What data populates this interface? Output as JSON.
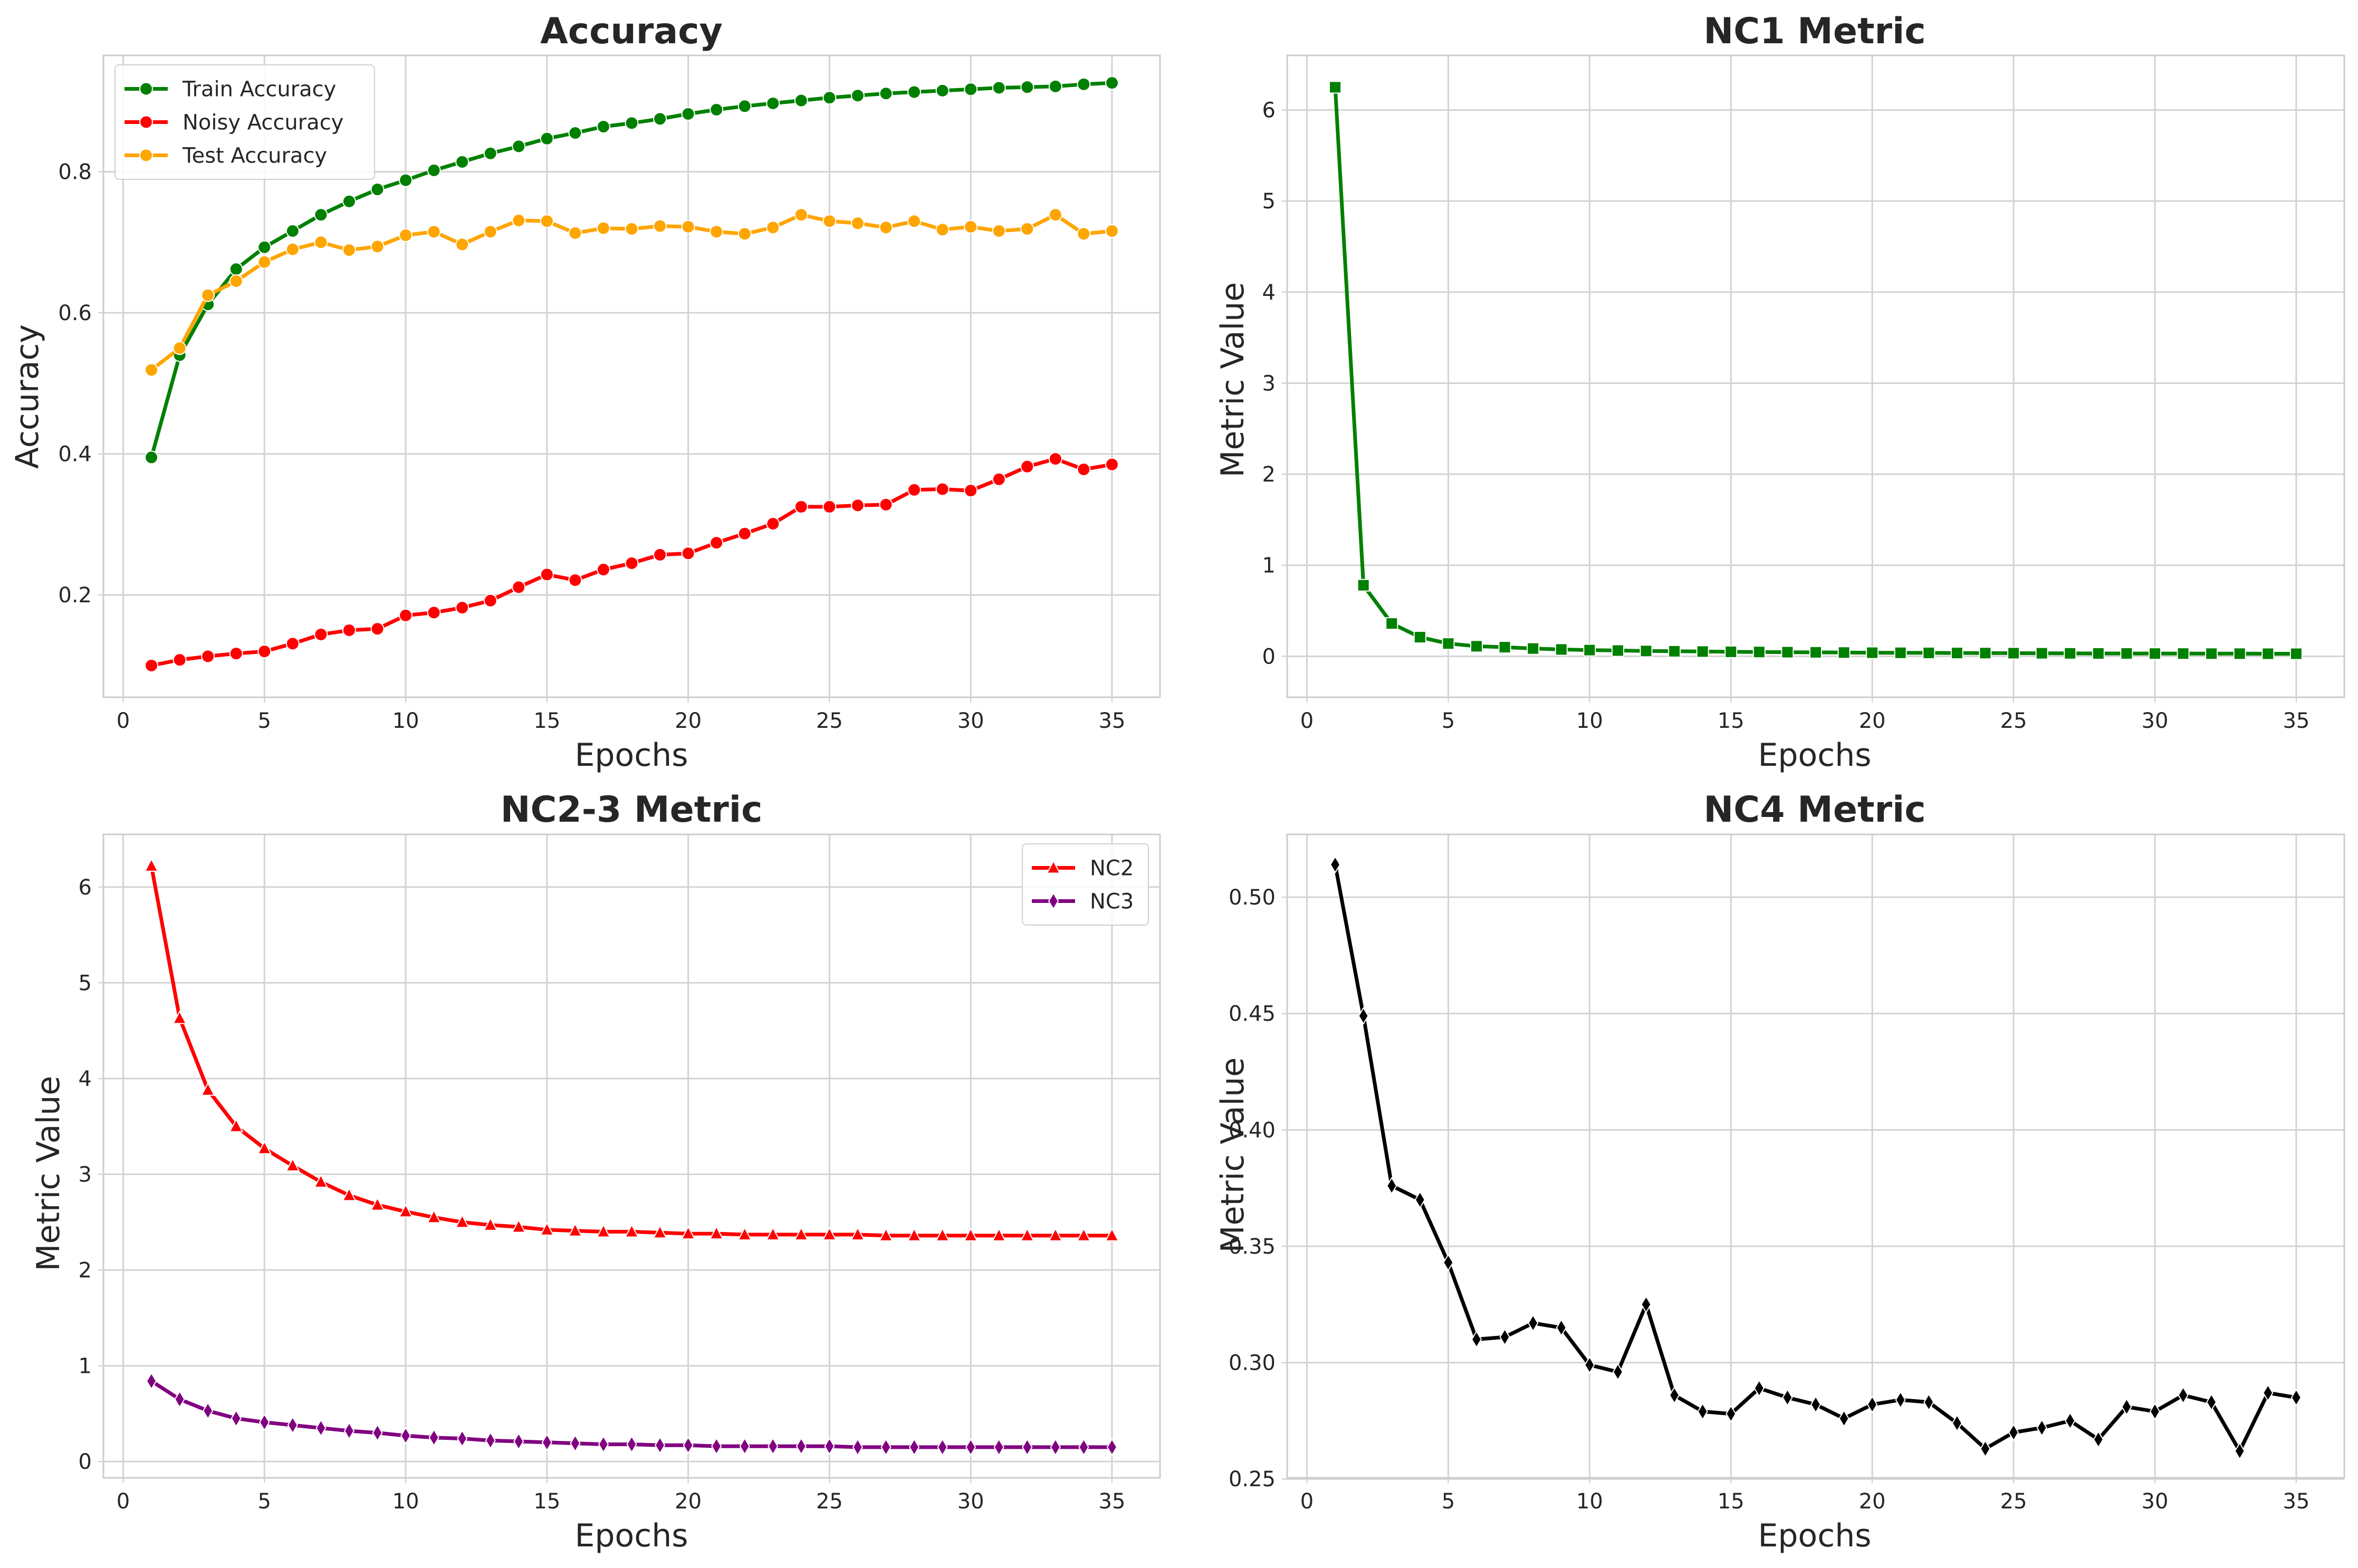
{
  "chart_data": [
    {
      "type": "line",
      "title": "Accuracy",
      "xlabel": "Epochs",
      "ylabel": "Accuracy",
      "xlim": [
        -0.7,
        36.7
      ],
      "ylim": [
        0.055,
        0.965
      ],
      "xticks": [
        0,
        5,
        10,
        15,
        20,
        25,
        30,
        35
      ],
      "yticks": [
        0.2,
        0.4,
        0.6,
        0.8
      ],
      "ytick_labels": [
        "0.2",
        "0.4",
        "0.6",
        "0.8"
      ],
      "grid": true,
      "legend": "top-left",
      "x": [
        1,
        2,
        3,
        4,
        5,
        6,
        7,
        8,
        9,
        10,
        11,
        12,
        13,
        14,
        15,
        16,
        17,
        18,
        19,
        20,
        21,
        22,
        23,
        24,
        25,
        26,
        27,
        28,
        29,
        30,
        31,
        32,
        33,
        34,
        35
      ],
      "series": [
        {
          "name": "Train Accuracy",
          "color": "#008000",
          "marker": "circle",
          "values": [
            0.395,
            0.54,
            0.612,
            0.662,
            0.693,
            0.716,
            0.739,
            0.758,
            0.775,
            0.788,
            0.802,
            0.814,
            0.826,
            0.836,
            0.847,
            0.855,
            0.864,
            0.869,
            0.875,
            0.882,
            0.888,
            0.893,
            0.897,
            0.901,
            0.905,
            0.908,
            0.911,
            0.913,
            0.915,
            0.917,
            0.919,
            0.92,
            0.921,
            0.924,
            0.926
          ]
        },
        {
          "name": "Noisy Accuracy",
          "color": "#ff0000",
          "marker": "circle",
          "values": [
            0.1,
            0.108,
            0.113,
            0.117,
            0.12,
            0.131,
            0.144,
            0.15,
            0.152,
            0.171,
            0.175,
            0.182,
            0.192,
            0.211,
            0.229,
            0.221,
            0.236,
            0.245,
            0.257,
            0.259,
            0.274,
            0.287,
            0.301,
            0.325,
            0.325,
            0.327,
            0.328,
            0.349,
            0.35,
            0.348,
            0.364,
            0.382,
            0.393,
            0.378,
            0.385
          ]
        },
        {
          "name": "Test Accuracy",
          "color": "#ffa500",
          "marker": "circle",
          "values": [
            0.519,
            0.55,
            0.625,
            0.645,
            0.672,
            0.69,
            0.7,
            0.689,
            0.694,
            0.71,
            0.715,
            0.697,
            0.715,
            0.731,
            0.73,
            0.713,
            0.72,
            0.719,
            0.723,
            0.722,
            0.715,
            0.712,
            0.721,
            0.739,
            0.73,
            0.727,
            0.721,
            0.73,
            0.718,
            0.722,
            0.716,
            0.719,
            0.739,
            0.712,
            0.716
          ]
        }
      ]
    },
    {
      "type": "line",
      "title": "NC1 Metric",
      "xlabel": "Epochs",
      "ylabel": "Metric Value",
      "xlim": [
        -0.7,
        36.7
      ],
      "ylim": [
        -0.45,
        6.6
      ],
      "xticks": [
        0,
        5,
        10,
        15,
        20,
        25,
        30,
        35
      ],
      "yticks": [
        0,
        1,
        2,
        3,
        4,
        5,
        6
      ],
      "ytick_labels": [
        "0",
        "1",
        "2",
        "3",
        "4",
        "5",
        "6"
      ],
      "grid": true,
      "x": [
        1,
        2,
        3,
        4,
        5,
        6,
        7,
        8,
        9,
        10,
        11,
        12,
        13,
        14,
        15,
        16,
        17,
        18,
        19,
        20,
        21,
        22,
        23,
        24,
        25,
        26,
        27,
        28,
        29,
        30,
        31,
        32,
        33,
        34,
        35
      ],
      "series": [
        {
          "color": "#008000",
          "marker": "square",
          "values": [
            6.25,
            0.78,
            0.36,
            0.21,
            0.14,
            0.11,
            0.1,
            0.085,
            0.075,
            0.068,
            0.063,
            0.058,
            0.055,
            0.052,
            0.049,
            0.047,
            0.045,
            0.043,
            0.041,
            0.039,
            0.038,
            0.037,
            0.036,
            0.035,
            0.034,
            0.033,
            0.032,
            0.031,
            0.031,
            0.03,
            0.03,
            0.029,
            0.029,
            0.028,
            0.028
          ]
        }
      ]
    },
    {
      "type": "line",
      "title": "NC2-3 Metric",
      "xlabel": "Epochs",
      "ylabel": "Metric Value",
      "xlim": [
        -0.7,
        36.7
      ],
      "ylim": [
        -0.17,
        6.55
      ],
      "xticks": [
        0,
        5,
        10,
        15,
        20,
        25,
        30,
        35
      ],
      "yticks": [
        0,
        1,
        2,
        3,
        4,
        5,
        6
      ],
      "ytick_labels": [
        "0",
        "1",
        "2",
        "3",
        "4",
        "5",
        "6"
      ],
      "grid": true,
      "legend": "top-right",
      "x": [
        1,
        2,
        3,
        4,
        5,
        6,
        7,
        8,
        9,
        10,
        11,
        12,
        13,
        14,
        15,
        16,
        17,
        18,
        19,
        20,
        21,
        22,
        23,
        24,
        25,
        26,
        27,
        28,
        29,
        30,
        31,
        32,
        33,
        34,
        35
      ],
      "series": [
        {
          "name": "NC2",
          "color": "#ff0000",
          "marker": "triangle",
          "values": [
            6.22,
            4.63,
            3.88,
            3.5,
            3.27,
            3.09,
            2.92,
            2.78,
            2.68,
            2.61,
            2.55,
            2.5,
            2.47,
            2.45,
            2.42,
            2.41,
            2.4,
            2.4,
            2.39,
            2.38,
            2.38,
            2.37,
            2.37,
            2.37,
            2.37,
            2.37,
            2.36,
            2.36,
            2.36,
            2.36,
            2.36,
            2.36,
            2.36,
            2.36,
            2.36
          ]
        },
        {
          "name": "NC3",
          "color": "#800080",
          "marker": "diamond",
          "values": [
            0.84,
            0.65,
            0.53,
            0.45,
            0.41,
            0.38,
            0.35,
            0.32,
            0.3,
            0.27,
            0.25,
            0.24,
            0.22,
            0.21,
            0.2,
            0.19,
            0.18,
            0.18,
            0.17,
            0.17,
            0.16,
            0.16,
            0.16,
            0.16,
            0.16,
            0.15,
            0.15,
            0.15,
            0.15,
            0.15,
            0.15,
            0.15,
            0.15,
            0.15,
            0.15
          ]
        }
      ]
    },
    {
      "type": "line",
      "title": "NC4 Metric",
      "xlabel": "Epochs",
      "ylabel": "Metric Value",
      "xlim": [
        -0.7,
        36.7
      ],
      "ylim": [
        0.2505,
        0.527
      ],
      "xticks": [
        0,
        5,
        10,
        15,
        20,
        25,
        30,
        35
      ],
      "yticks": [
        0.25,
        0.3,
        0.35,
        0.4,
        0.45,
        0.5
      ],
      "ytick_labels": [
        "0.25",
        "0.30",
        "0.35",
        "0.40",
        "0.45",
        "0.50"
      ],
      "grid": true,
      "x": [
        1,
        2,
        3,
        4,
        5,
        6,
        7,
        8,
        9,
        10,
        11,
        12,
        13,
        14,
        15,
        16,
        17,
        18,
        19,
        20,
        21,
        22,
        23,
        24,
        25,
        26,
        27,
        28,
        29,
        30,
        31,
        32,
        33,
        34,
        35
      ],
      "series": [
        {
          "color": "#000000",
          "marker": "diamond",
          "values": [
            0.514,
            0.449,
            0.376,
            0.37,
            0.343,
            0.31,
            0.311,
            0.317,
            0.315,
            0.299,
            0.296,
            0.325,
            0.286,
            0.279,
            0.278,
            0.289,
            0.285,
            0.282,
            0.276,
            0.282,
            0.284,
            0.283,
            0.274,
            0.263,
            0.27,
            0.272,
            0.275,
            0.267,
            0.281,
            0.279,
            0.286,
            0.283,
            0.262,
            0.287,
            0.285
          ]
        }
      ]
    }
  ]
}
